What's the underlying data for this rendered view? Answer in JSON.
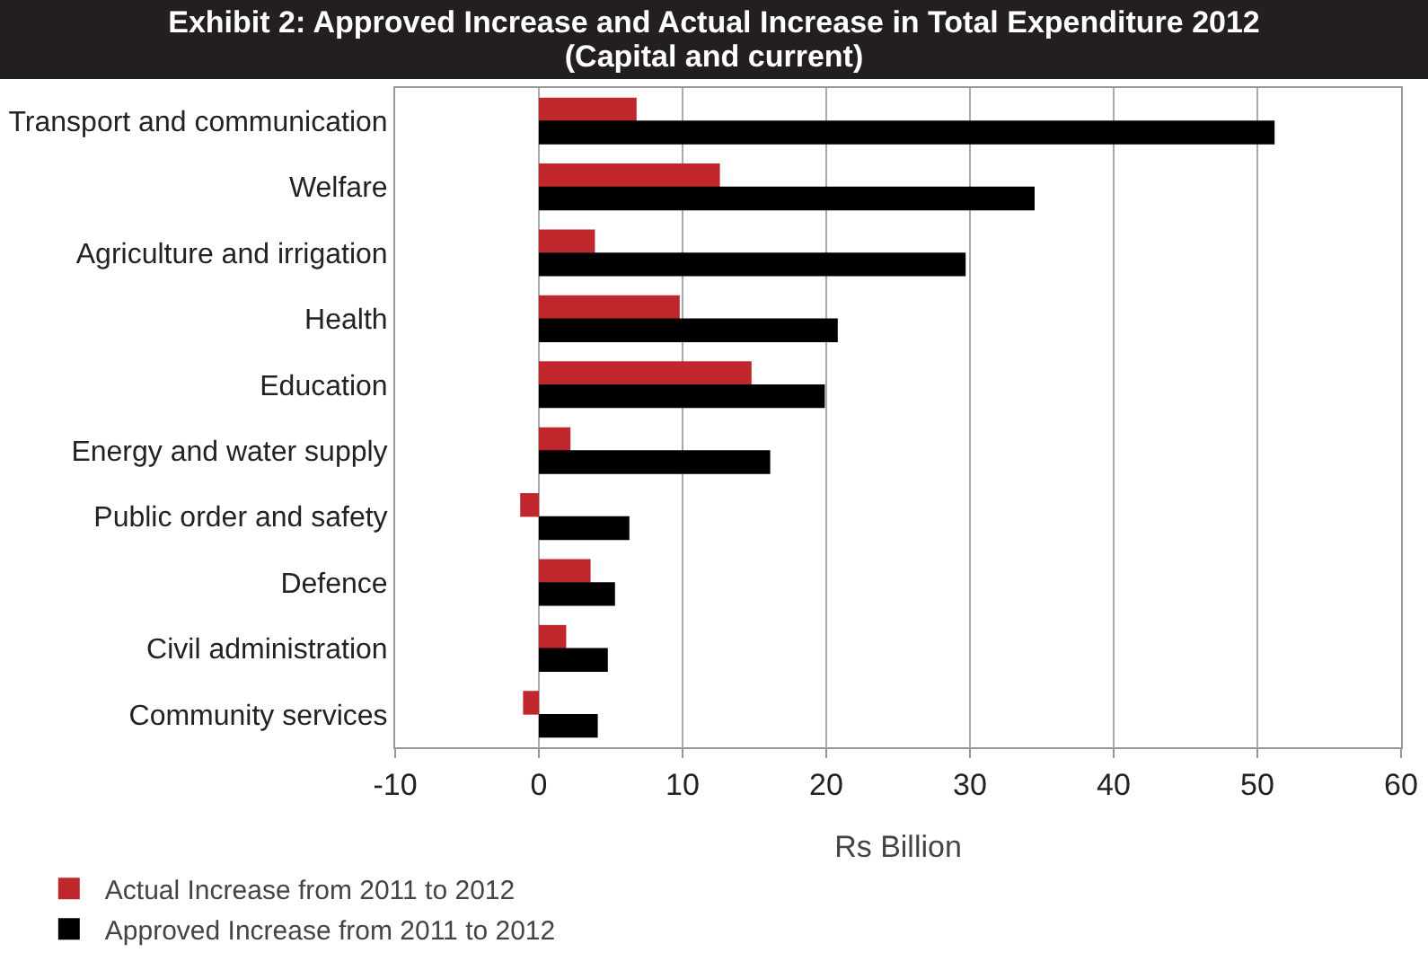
{
  "chart_data": {
    "type": "bar",
    "orientation": "horizontal",
    "title": "Exhibit 2: Approved Increase and Actual Increase in Total Expenditure 2012",
    "subtitle": "(Capital and current)",
    "xlabel": "Rs Billion",
    "categories": [
      "Transport and communication",
      "Welfare",
      "Agriculture and irrigation",
      "Health",
      "Education",
      "Energy and water supply",
      "Public order and safety",
      "Defence",
      "Civil administration",
      "Community services"
    ],
    "series": [
      {
        "name": "Actual Increase from 2011 to 2012",
        "color": "#c0272d",
        "values": [
          6.8,
          12.6,
          3.9,
          9.8,
          14.8,
          2.2,
          -1.3,
          3.6,
          1.9,
          -1.1
        ]
      },
      {
        "name": "Approved Increase from 2011 to 2012",
        "color": "#000000",
        "values": [
          51.2,
          34.5,
          29.7,
          20.8,
          19.9,
          16.1,
          6.3,
          5.3,
          4.8,
          4.1
        ]
      }
    ],
    "xlim": [
      -10,
      60
    ],
    "xticks": [
      -10,
      0,
      10,
      20,
      30,
      40,
      50,
      60
    ],
    "grid": "x",
    "legend": "bottom"
  }
}
